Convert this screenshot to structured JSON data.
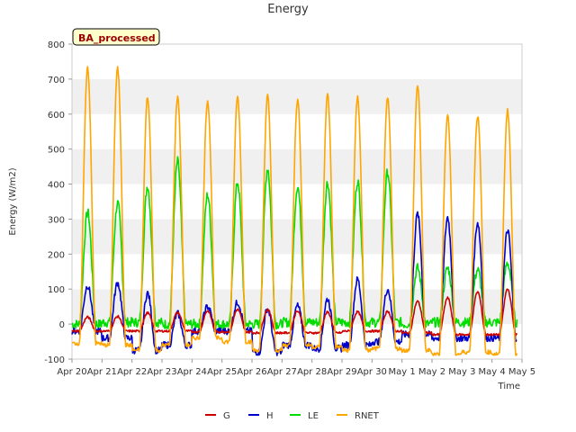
{
  "chart_data": {
    "type": "line",
    "title": "Energy",
    "xlabel": "Time",
    "ylabel": "Energy (W/m2)",
    "badge": "BA_processed",
    "ylim": [
      -100,
      800
    ],
    "yticks": [
      -100,
      0,
      100,
      200,
      300,
      400,
      500,
      600,
      700,
      800
    ],
    "xlim": [
      "Apr 20",
      "May 5"
    ],
    "xticks": [
      "Apr 20",
      "Apr 21",
      "Apr 22",
      "Apr 23",
      "Apr 24",
      "Apr 25",
      "Apr 26",
      "Apr 27",
      "Apr 28",
      "Apr 29",
      "Apr 30",
      "May 1",
      "May 2",
      "May 3",
      "May 4",
      "May 5"
    ],
    "grid": "horizontal bands",
    "legend_position": "bottom-center",
    "daily_peaks": {
      "days": [
        "Apr 20",
        "Apr 21",
        "Apr 22",
        "Apr 23",
        "Apr 24",
        "Apr 25",
        "Apr 26",
        "Apr 27",
        "Apr 28",
        "Apr 29",
        "Apr 30",
        "May 1",
        "May 2",
        "May 3",
        "May 4"
      ],
      "note": "Each series is a diurnal cycle: night value around the day's daily minimum, midday peak given below, data begins about Apr 20 and ends about May 4."
    },
    "series": [
      {
        "name": "G",
        "color": "#cc0000",
        "day_peak": [
          20,
          22,
          32,
          33,
          38,
          42,
          42,
          38,
          34,
          35,
          36,
          65,
          75,
          92,
          100
        ],
        "night": [
          -20,
          -20,
          -20,
          -20,
          -22,
          -22,
          -25,
          -25,
          -25,
          -20,
          -20,
          -25,
          -30,
          -30,
          -30
        ]
      },
      {
        "name": "H",
        "color": "#0000cc",
        "day_peak": [
          110,
          118,
          88,
          30,
          50,
          62,
          44,
          52,
          72,
          128,
          100,
          315,
          305,
          290,
          268
        ],
        "night": [
          -20,
          -40,
          -75,
          -60,
          -20,
          -20,
          -80,
          -60,
          -70,
          -60,
          -50,
          -30,
          -40,
          -40,
          -40
        ]
      },
      {
        "name": "LE",
        "color": "#00dd00",
        "day_peak": [
          320,
          345,
          395,
          465,
          370,
          405,
          445,
          395,
          405,
          410,
          435,
          160,
          160,
          155,
          175
        ],
        "night": [
          0,
          5,
          5,
          0,
          0,
          0,
          0,
          5,
          5,
          5,
          5,
          0,
          5,
          5,
          5
        ]
      },
      {
        "name": "RNET",
        "color": "#ffa500",
        "day_peak": [
          730,
          730,
          648,
          650,
          638,
          648,
          652,
          640,
          655,
          648,
          645,
          680,
          598,
          595,
          610
        ],
        "night": [
          -55,
          -60,
          -75,
          -60,
          -40,
          -50,
          -75,
          -60,
          -65,
          -75,
          -70,
          -75,
          -85,
          -80,
          -85
        ]
      }
    ]
  }
}
